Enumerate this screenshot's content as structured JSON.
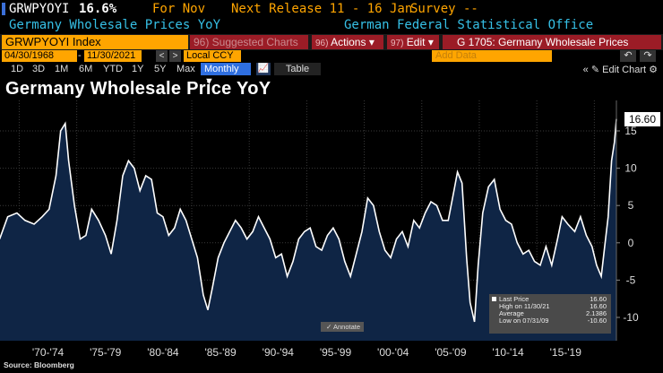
{
  "header": {
    "ticker_short": "GRWPYOYI",
    "last_value": "16.6%",
    "for_label": "For Nov",
    "next_release": "Next Release 11 - 16 Jan",
    "survey": "Survey --",
    "series_name": "Germany Wholesale Prices YoY",
    "source_name": "German Federal Statistical Office"
  },
  "toolbar": {
    "ticker_field": "GRWPYOYI Index",
    "suggested_charts": "96) Suggested Charts",
    "actions_num": "96)",
    "actions": "Actions",
    "edit_num": "97)",
    "edit": "Edit",
    "chart_name": "G 1705: Germany Wholesale Prices",
    "start_date": "04/30/1968",
    "end_date": "11/30/2021",
    "currency": "Local CCY",
    "add_data_placeholder": "Add Data",
    "edit_chart": "Edit Chart",
    "periods": [
      "1D",
      "3D",
      "1M",
      "6M",
      "YTD",
      "1Y",
      "5Y",
      "Max"
    ],
    "frequency": "Monthly",
    "table": "Table"
  },
  "chart_title": "Germany Wholesale Price YoY",
  "last_price_label": "16.60",
  "legend": {
    "last_price_label": "Last Price",
    "last_price_value": "16.60",
    "high_label": "High on 11/30/21",
    "high_value": "16.60",
    "average_label": "Average",
    "average_value": "2.1386",
    "low_label": "Low on 07/31/09",
    "low_value": "-10.60"
  },
  "annotate": "Annotate",
  "source": "Source: Bloomberg",
  "colors": {
    "orange": "#ffa500",
    "dark_red": "#9b1c26",
    "area_fill": "#0f2545",
    "line": "#ffffff",
    "accent_blue": "#2f6fe0"
  },
  "chart_data": {
    "type": "area",
    "title": "Germany Wholesale Price YoY",
    "x_label": "",
    "y_label": "",
    "ylim": [
      -12,
      20
    ],
    "y_ticks": [
      15,
      10,
      5,
      0,
      -5,
      -10
    ],
    "x_tick_labels": [
      "'70-'74",
      "'75-'79",
      "'80-'84",
      "'85-'89",
      "'90-'94",
      "'95-'99",
      "'00-'04",
      "'05-'09",
      "'10-'14",
      "'15-'19"
    ],
    "x_range": [
      1968.33,
      2021.92
    ],
    "series": [
      {
        "name": "GRWPYOYI Index",
        "x": [
          1968.3,
          1969.0,
          1969.8,
          1970.5,
          1971.3,
          1972.0,
          1972.6,
          1973.2,
          1973.6,
          1974.0,
          1974.3,
          1974.8,
          1975.3,
          1975.8,
          1976.3,
          1976.9,
          1977.5,
          1978.0,
          1978.5,
          1979.0,
          1979.5,
          1980.0,
          1980.5,
          1981.0,
          1981.5,
          1982.0,
          1982.5,
          1983.0,
          1983.5,
          1984.0,
          1984.5,
          1985.0,
          1985.5,
          1986.0,
          1986.4,
          1986.8,
          1987.3,
          1987.8,
          1988.3,
          1988.8,
          1989.3,
          1989.8,
          1990.3,
          1990.8,
          1991.3,
          1991.8,
          1992.3,
          1992.8,
          1993.3,
          1993.8,
          1994.3,
          1994.8,
          1995.3,
          1995.8,
          1996.3,
          1996.8,
          1997.3,
          1997.8,
          1998.3,
          1998.8,
          1999.3,
          1999.8,
          2000.3,
          2000.8,
          2001.3,
          2001.8,
          2002.3,
          2002.8,
          2003.3,
          2003.8,
          2004.3,
          2004.8,
          2005.3,
          2005.8,
          2006.3,
          2006.8,
          2007.3,
          2007.8,
          2008.1,
          2008.5,
          2008.9,
          2009.2,
          2009.58,
          2009.9,
          2010.3,
          2010.8,
          2011.3,
          2011.8,
          2012.3,
          2012.8,
          2013.3,
          2013.8,
          2014.3,
          2014.8,
          2015.3,
          2015.8,
          2016.3,
          2016.8,
          2017.2,
          2017.7,
          2018.3,
          2018.8,
          2019.3,
          2019.8,
          2020.2,
          2020.6,
          2020.9,
          2021.2,
          2021.5,
          2021.75,
          2021.92
        ],
        "values": [
          0.5,
          3.5,
          4.0,
          3.0,
          2.5,
          3.5,
          4.5,
          9.0,
          15.0,
          16.0,
          11.0,
          5.0,
          0.5,
          1.0,
          4.5,
          3.0,
          1.0,
          -1.5,
          3.0,
          9.0,
          11.0,
          10.0,
          7.0,
          9.0,
          8.5,
          4.0,
          3.5,
          1.0,
          2.0,
          4.5,
          3.0,
          0.5,
          -2.0,
          -7.0,
          -9.0,
          -6.0,
          -2.0,
          0.0,
          1.5,
          3.0,
          2.0,
          0.5,
          1.5,
          3.5,
          2.0,
          0.5,
          -2.0,
          -1.5,
          -4.5,
          -2.5,
          0.5,
          1.5,
          2.0,
          -0.5,
          -1.0,
          1.0,
          2.0,
          0.5,
          -2.5,
          -4.5,
          -1.5,
          1.5,
          6.0,
          5.0,
          1.5,
          -1.0,
          -2.0,
          0.5,
          1.5,
          -0.5,
          3.0,
          2.0,
          4.0,
          5.5,
          5.0,
          3.0,
          3.0,
          7.0,
          9.5,
          8.0,
          -2.0,
          -8.0,
          -10.6,
          -3.0,
          4.0,
          7.5,
          8.5,
          4.5,
          3.0,
          2.5,
          0.0,
          -1.5,
          -1.0,
          -2.5,
          -3.0,
          -0.5,
          -3.0,
          0.5,
          3.5,
          2.5,
          1.5,
          3.5,
          1.0,
          -0.5,
          -3.0,
          -4.5,
          -0.5,
          3.5,
          11.0,
          13.5,
          16.6
        ]
      }
    ]
  }
}
